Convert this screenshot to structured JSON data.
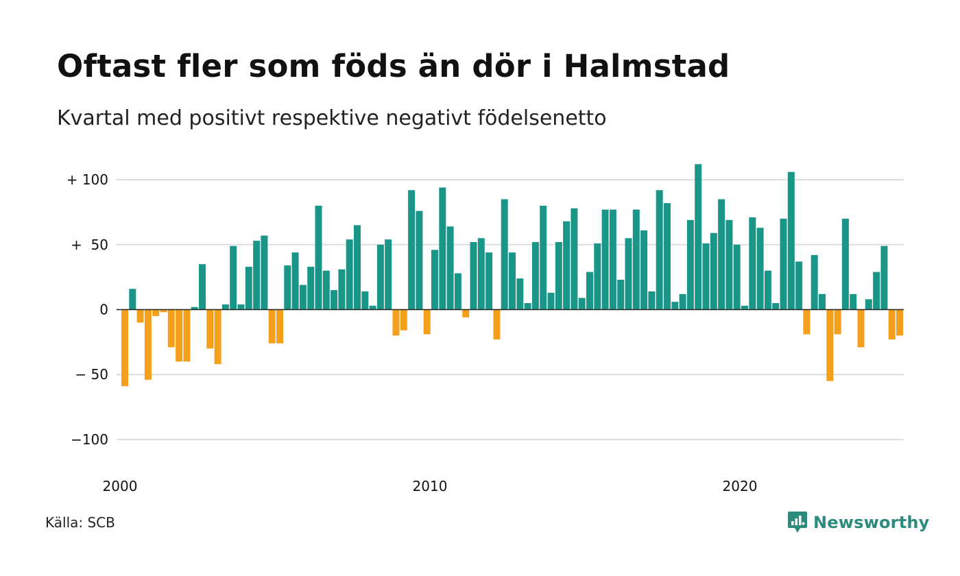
{
  "title": "Oftast fler som föds än dör i Halmstad",
  "subtitle": "Kvartal med positivt respektive negativt födelsenetto",
  "source": "Källa: SCB",
  "brand": {
    "name": "Newsworthy",
    "icon": "newsworthy-logo-icon"
  },
  "chart_data": {
    "type": "bar",
    "title": "Oftast fler som föds än dör i Halmstad",
    "subtitle": "Kvartal med positivt respektive negativt födelsenetto",
    "xlabel": "",
    "ylabel": "",
    "start": "2000 Q1",
    "period": "quarter",
    "x_ticks": [
      {
        "label": "2000",
        "year": 2000
      },
      {
        "label": "2010",
        "year": 2010
      },
      {
        "label": "2020",
        "year": 2020
      }
    ],
    "y_ticks": [
      {
        "label": "+ 100",
        "value": 100
      },
      {
        "label": "+  50",
        "value": 50
      },
      {
        "label": "0",
        "value": 0
      },
      {
        "label": "− 50",
        "value": -50
      },
      {
        "label": "−100",
        "value": -100
      }
    ],
    "ylim": [
      -120,
      115
    ],
    "grid": true,
    "colors": {
      "positive": "#1a9688",
      "negative": "#f5a01b",
      "grid": "#dddddd",
      "axis": "#222222"
    },
    "values": [
      -59,
      16,
      -10,
      -54,
      -5,
      -2,
      -29,
      -40,
      -40,
      2,
      35,
      -30,
      -42,
      4,
      49,
      4,
      33,
      53,
      57,
      -26,
      -26,
      34,
      44,
      19,
      33,
      80,
      30,
      15,
      31,
      54,
      65,
      14,
      3,
      50,
      54,
      -20,
      -16,
      92,
      76,
      -19,
      46,
      94,
      64,
      28,
      -6,
      52,
      55,
      44,
      -23,
      85,
      44,
      24,
      5,
      52,
      80,
      13,
      52,
      68,
      78,
      9,
      29,
      51,
      77,
      77,
      23,
      55,
      77,
      61,
      14,
      92,
      82,
      6,
      12,
      69,
      112,
      51,
      59,
      85,
      69,
      50,
      3,
      71,
      63,
      30,
      5,
      70,
      106,
      37,
      -19,
      42,
      12,
      -55,
      -19,
      70,
      12,
      -29,
      8,
      29,
      49,
      -23,
      -20
    ]
  }
}
